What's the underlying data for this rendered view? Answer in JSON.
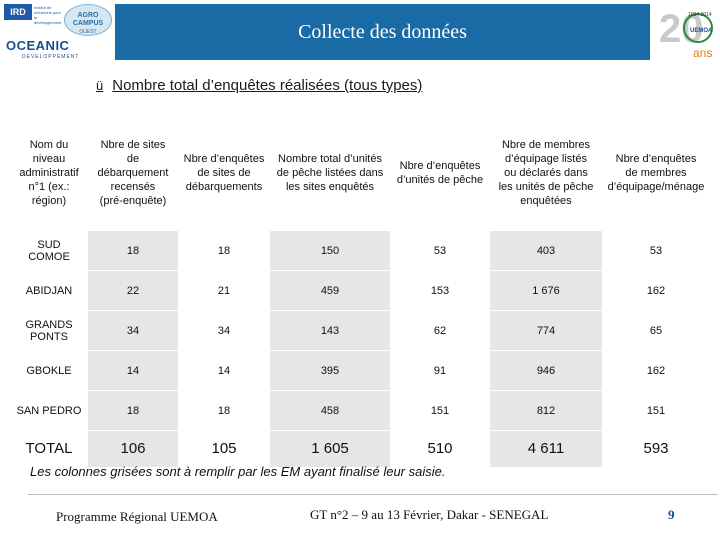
{
  "header": {
    "title": "Collecte des données",
    "logos": {
      "ird": "IRD",
      "ird_tagline": "Institut de recherche pour le développement",
      "agro": "AGRO CAMPUS",
      "agro_sub": "OUEST",
      "oceanic": "OCEANIC",
      "oceanic_sub": "DEVELOPPEMENT",
      "anniv_years": "1994 2014",
      "anniv_number": "20",
      "anniv_org": "UEMOA",
      "anniv_suffix": "ans"
    }
  },
  "subtitle": {
    "check": "ü",
    "text": "Nombre total d’enquêtes réalisées (tous types)"
  },
  "table": {
    "headers": [
      [
        "Nom du",
        "niveau",
        "administratif",
        "n°1 (ex.:",
        "région)"
      ],
      [
        "Nbre de sites",
        "de",
        "débarquement",
        "recensés",
        "(pré-enquête)"
      ],
      [
        "Nbre d’enquêtes",
        "de sites de",
        "débarquements"
      ],
      [
        "Nombre total d’unités",
        "de pêche listées dans",
        "les sites enquêtés"
      ],
      [
        "Nbre d’enquêtes",
        "d’unités de pêche"
      ],
      [
        "Nbre de membres",
        "d’équipage listés",
        "ou déclarés dans",
        "les unités de pêche",
        "enquêtées"
      ],
      [
        "Nbre d’enquêtes",
        "de membres",
        "d’équipage/ménage"
      ]
    ],
    "rows": [
      [
        "SUD\nCOMOE",
        "18",
        "18",
        "150",
        "53",
        "403",
        "53"
      ],
      [
        "ABIDJAN",
        "22",
        "21",
        "459",
        "153",
        "1 676",
        "162"
      ],
      [
        "GRANDS\nPONTS",
        "34",
        "34",
        "143",
        "62",
        "774",
        "65"
      ],
      [
        "GBOKLE",
        "14",
        "14",
        "395",
        "91",
        "946",
        "162"
      ],
      [
        "SAN PEDRO",
        "18",
        "18",
        "458",
        "151",
        "812",
        "151"
      ]
    ],
    "total": [
      "TOTAL",
      "106",
      "105",
      "1 605",
      "510",
      "4 611",
      "593"
    ]
  },
  "note": "Les colonnes grisées sont à remplir par les EM ayant finalisé leur saisie.",
  "footer": {
    "left": "Programme Régional UEMOA",
    "center": "GT n°2 – 9 au 13 Février, Dakar - SENEGAL",
    "page": "9"
  },
  "colors": {
    "title_bar": "#1a6aa6",
    "grey_cell": "#e6e6e6",
    "page_number": "#1a4a8a"
  }
}
